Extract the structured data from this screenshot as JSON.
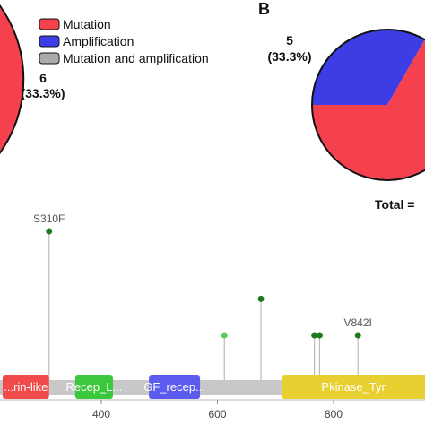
{
  "chart_data": [
    {
      "type": "pie",
      "panel": "",
      "slices": [
        {
          "label": "Mutation",
          "count": 6,
          "percent": 33.3,
          "color": "#f4414d"
        },
        {
          "label": "Amplification",
          "count": 5,
          "percent": 33.3,
          "color": "#3d3de6"
        },
        {
          "label": "Mutation and amplification",
          "color": "#aaaaaa"
        }
      ],
      "data_labels": [
        {
          "count": "6",
          "percent": "(33.3%)"
        }
      ]
    },
    {
      "type": "pie",
      "panel": "B",
      "slices": [
        {
          "label": "Amplification",
          "percent": 33.3,
          "color": "#3d3de6"
        },
        {
          "label": "Mutation",
          "percent": 66.7,
          "color": "#f4414d"
        }
      ],
      "data_labels": [
        {
          "count": "5",
          "percent": "(33.3%)"
        }
      ],
      "total_label": "Total ="
    },
    {
      "type": "lollipop",
      "x_ticks": [
        400,
        600,
        800
      ],
      "x_range": [
        270,
        870
      ],
      "backbone_color": "#c8c8c8",
      "domains": [
        {
          "label": "...rin-like",
          "start": 230,
          "end": 310,
          "color": "#f04a4a",
          "text_class": "light"
        },
        {
          "label": "Recep_L...",
          "start": 355,
          "end": 420,
          "color": "#3cc83c",
          "text_class": "light"
        },
        {
          "label": "GF_recep...",
          "start": 482,
          "end": 570,
          "color": "#5b5bf0",
          "text_class": "light"
        },
        {
          "label": "Pkinase_Tyr",
          "start": 711,
          "end": 990,
          "color": "#e8d030",
          "text_class": "light"
        }
      ],
      "mutations": [
        {
          "position": 310,
          "height": 3.0,
          "label": "S310F",
          "color": "#1f7a1f"
        },
        {
          "position": 612,
          "height": 1.0,
          "label": "",
          "color": "#55cc55"
        },
        {
          "position": 675,
          "height": 1.7,
          "label": "",
          "color": "#1f7a1f"
        },
        {
          "position": 767,
          "height": 1.0,
          "label": "",
          "color": "#1f7a1f"
        },
        {
          "position": 776,
          "height": 1.0,
          "label": "",
          "color": "#1f7a1f"
        },
        {
          "position": 842,
          "height": 1.0,
          "label": "V842I",
          "color": "#1f7a1f"
        }
      ]
    }
  ],
  "legend": {
    "items": [
      {
        "label": "Mutation",
        "color": "#f4414d"
      },
      {
        "label": "Amplification",
        "color": "#3d3de6"
      },
      {
        "label": "Mutation and amplification",
        "color": "#aaaaaa"
      }
    ]
  }
}
